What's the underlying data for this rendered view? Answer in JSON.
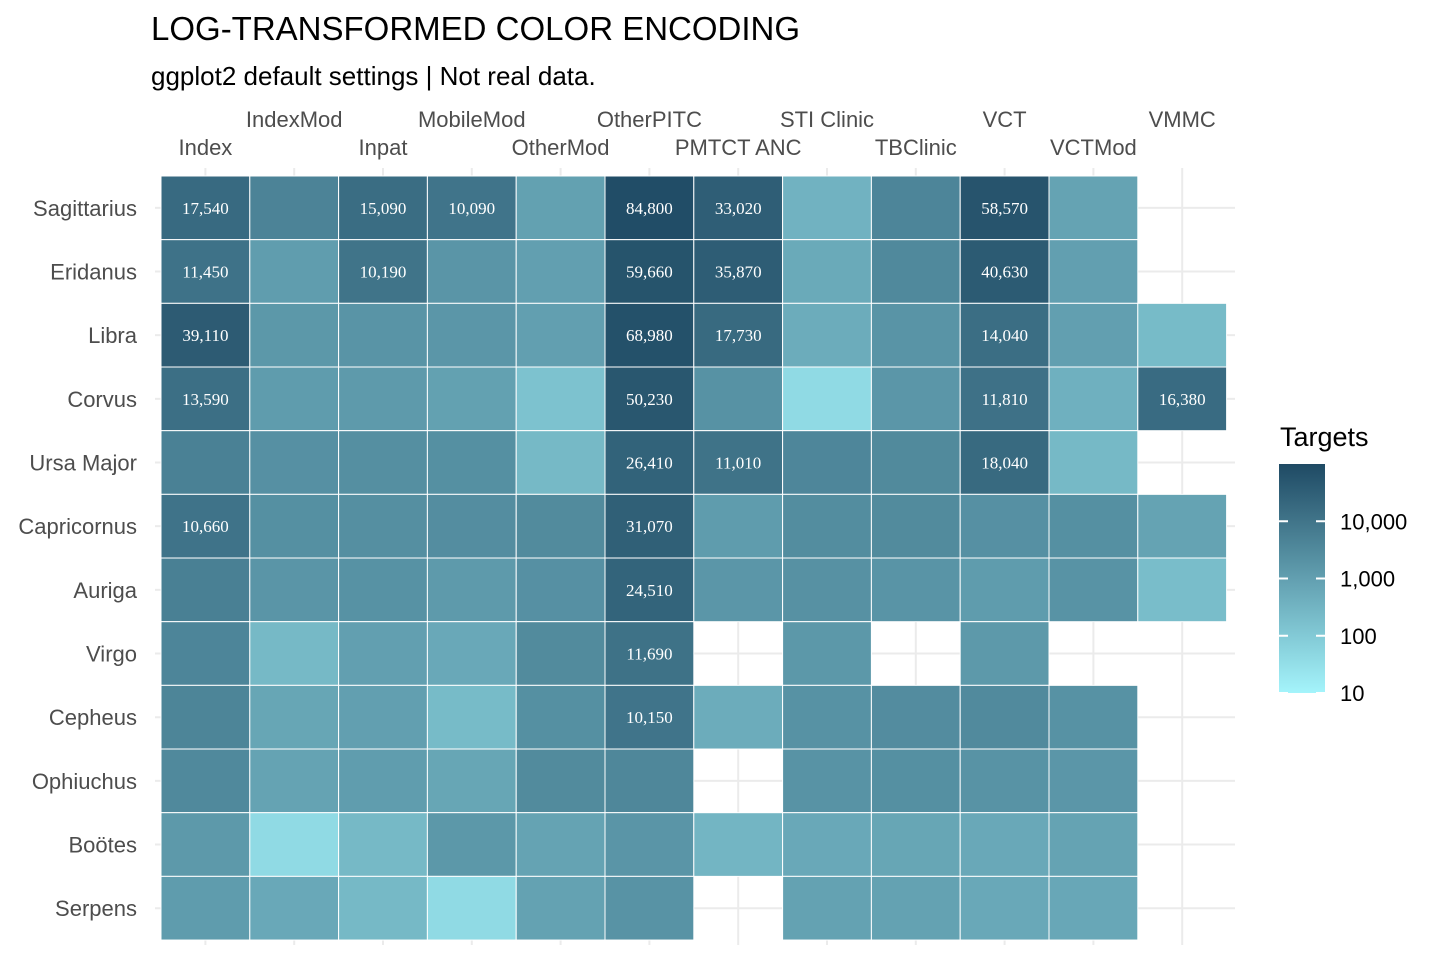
{
  "chart_data": {
    "type": "heatmap",
    "title": "LOG-TRANSFORMED COLOR ENCODING",
    "subtitle": "ggplot2 default settings | Not real data.",
    "x_position": "top",
    "grid": true,
    "categories_x": [
      "Index",
      "IndexMod",
      "Inpat",
      "MobileMod",
      "OtherMod",
      "OtherPITC",
      "PMTCT ANC",
      "STI Clinic",
      "TBClinic",
      "VCT",
      "VCTMod",
      "VMMC"
    ],
    "categories_y": [
      "Sagittarius",
      "Eridanus",
      "Libra",
      "Corvus",
      "Ursa Major",
      "Capricornus",
      "Auriga",
      "Virgo",
      "Cepheus",
      "Ophiuchus",
      "Boötes",
      "Serpens"
    ],
    "values": [
      [
        17540,
        4500,
        15090,
        10090,
        900,
        84800,
        33020,
        350,
        4000,
        58570,
        800,
        null
      ],
      [
        11450,
        1100,
        10190,
        1700,
        1000,
        59660,
        35870,
        550,
        3300,
        40630,
        1000,
        null
      ],
      [
        39110,
        1500,
        1800,
        1600,
        1000,
        68980,
        17730,
        500,
        1800,
        14040,
        1000,
        220
      ],
      [
        13590,
        1200,
        1300,
        900,
        150,
        50230,
        2000,
        40,
        1600,
        11810,
        400,
        16380
      ],
      [
        5000,
        2200,
        2400,
        2300,
        250,
        26410,
        11010,
        3800,
        3200,
        18040,
        250,
        null
      ],
      [
        10660,
        2300,
        2400,
        2600,
        3000,
        31070,
        1200,
        2700,
        3000,
        2200,
        2300,
        800
      ],
      [
        5500,
        1700,
        2000,
        1300,
        2200,
        24510,
        1600,
        2100,
        1800,
        1200,
        1900,
        200
      ],
      [
        4000,
        250,
        1000,
        600,
        3000,
        11690,
        null,
        1500,
        null,
        1400,
        null,
        null
      ],
      [
        4200,
        700,
        1000,
        220,
        2300,
        10150,
        500,
        2000,
        2800,
        3100,
        2000,
        null
      ],
      [
        3300,
        800,
        1100,
        700,
        3000,
        3600,
        null,
        1900,
        2300,
        1900,
        1600,
        null
      ],
      [
        1400,
        40,
        250,
        1500,
        800,
        1700,
        300,
        600,
        700,
        600,
        800,
        null
      ],
      [
        1200,
        600,
        250,
        40,
        850,
        1900,
        null,
        850,
        850,
        600,
        650,
        null
      ]
    ],
    "cell_labels_shown_above": 10000,
    "color_scale": {
      "transform": "log10",
      "low_color": "#a4f4fb",
      "high_color": "#1f4a64",
      "domain": [
        10,
        100000
      ]
    },
    "legend": {
      "title": "Targets",
      "position": "right",
      "breaks": [
        10,
        100,
        1000,
        10000
      ],
      "labels": [
        "10",
        "100",
        "1,000",
        "10,000"
      ]
    }
  }
}
